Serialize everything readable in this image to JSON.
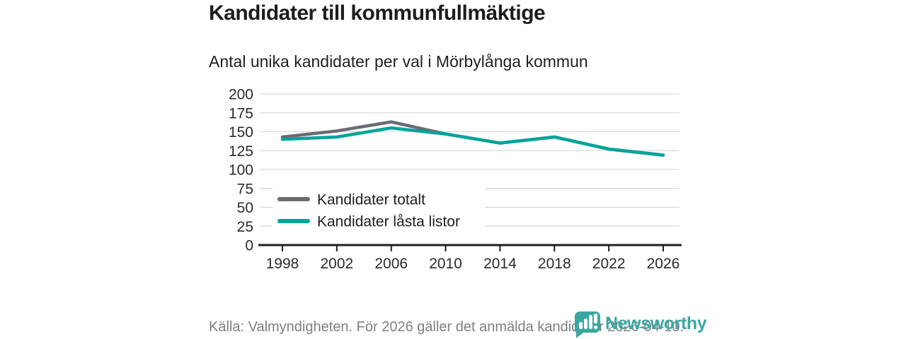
{
  "header": {
    "title": "Kandidater till kommunfullmäktige",
    "subtitle": "Antal unika kandidater per val i Mörbylånga kommun"
  },
  "chart_data": {
    "type": "line",
    "categories": [
      "1998",
      "2002",
      "2006",
      "2010",
      "2014",
      "2018",
      "2022",
      "2026"
    ],
    "series": [
      {
        "name": "Kandidater totalt",
        "color": "#6b6b73",
        "values": [
          143,
          151,
          163,
          147,
          135,
          143,
          127,
          119
        ]
      },
      {
        "name": "Kandidater låsta listor",
        "color": "#00a49a",
        "values": [
          140,
          143,
          155,
          147,
          135,
          143,
          127,
          119
        ]
      }
    ],
    "title": "Kandidater till kommunfullmäktige",
    "subtitle": "Antal unika kandidater per val i Mörbylånga kommun",
    "xlabel": "",
    "ylabel": "",
    "ylim": [
      0,
      200
    ],
    "yticks": [
      0,
      25,
      50,
      75,
      100,
      125,
      150,
      175,
      200
    ],
    "grid": true,
    "legend_position": "inside-lower-left"
  },
  "footer": {
    "source": "Källa: Valmyndigheten. För 2026 gäller det anmälda kandidater 2026-04-10."
  },
  "branding": {
    "logo_text": "Newsworthy",
    "logo_icon": "speech-bubble-bar-chart-icon",
    "logo_color": "#3aa8a1"
  },
  "colors": {
    "grid": "#d9d9d9",
    "axis": "#1f1f23",
    "background": "#ffffff",
    "text_dark": "#1d1d1f",
    "text_muted": "#7e7e86"
  }
}
